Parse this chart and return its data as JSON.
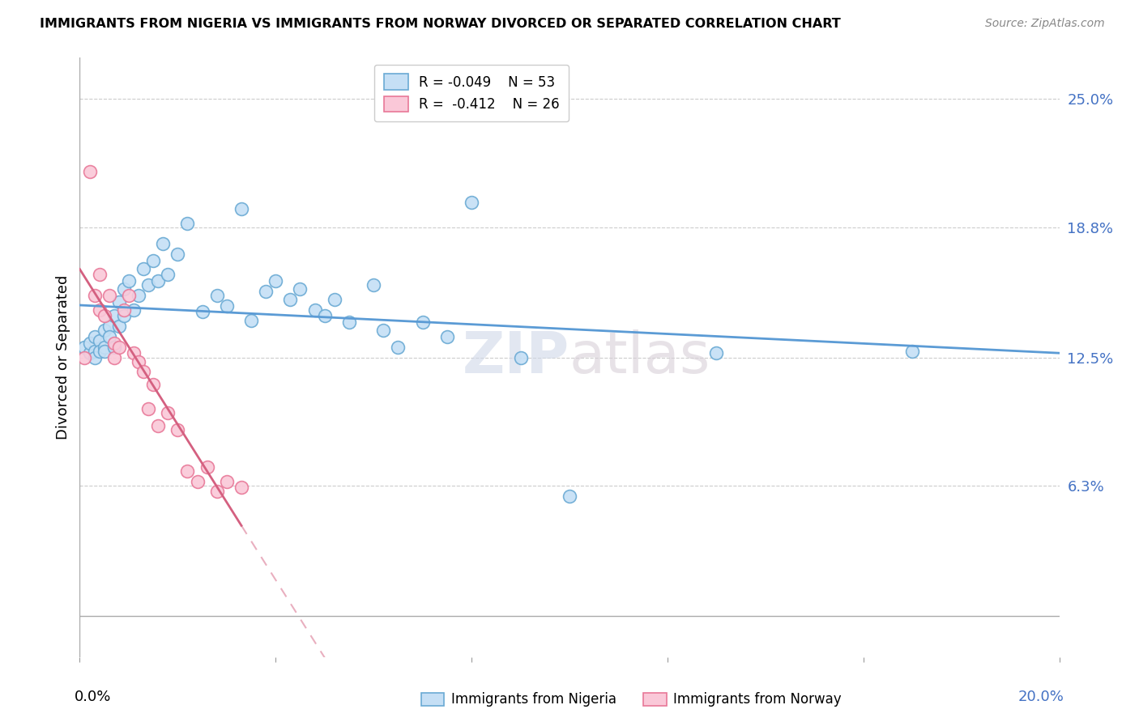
{
  "title": "IMMIGRANTS FROM NIGERIA VS IMMIGRANTS FROM NORWAY DIVORCED OR SEPARATED CORRELATION CHART",
  "source": "Source: ZipAtlas.com",
  "ylabel": "Divorced or Separated",
  "ytick_labels": [
    "6.3%",
    "12.5%",
    "18.8%",
    "25.0%"
  ],
  "ytick_values": [
    0.063,
    0.125,
    0.188,
    0.25
  ],
  "xlim": [
    0.0,
    0.2
  ],
  "ylim": [
    -0.02,
    0.27
  ],
  "watermark": "ZIPatlas",
  "nigeria_face_color": "#c5dff5",
  "nigeria_edge_color": "#6aaad4",
  "norway_face_color": "#fac8d8",
  "norway_edge_color": "#e87898",
  "nigeria_line_color": "#5b9bd5",
  "norway_line_color": "#d46080",
  "nigeria_scatter_x": [
    0.001,
    0.002,
    0.002,
    0.003,
    0.003,
    0.003,
    0.004,
    0.004,
    0.005,
    0.005,
    0.005,
    0.006,
    0.006,
    0.007,
    0.007,
    0.008,
    0.008,
    0.009,
    0.009,
    0.01,
    0.011,
    0.012,
    0.013,
    0.014,
    0.015,
    0.016,
    0.017,
    0.018,
    0.02,
    0.022,
    0.025,
    0.028,
    0.03,
    0.033,
    0.035,
    0.038,
    0.04,
    0.043,
    0.045,
    0.048,
    0.05,
    0.052,
    0.055,
    0.06,
    0.062,
    0.065,
    0.07,
    0.075,
    0.08,
    0.09,
    0.1,
    0.13,
    0.17
  ],
  "nigeria_scatter_y": [
    0.13,
    0.127,
    0.132,
    0.128,
    0.135,
    0.125,
    0.133,
    0.128,
    0.138,
    0.13,
    0.128,
    0.14,
    0.135,
    0.145,
    0.13,
    0.152,
    0.14,
    0.158,
    0.145,
    0.162,
    0.148,
    0.155,
    0.168,
    0.16,
    0.172,
    0.162,
    0.18,
    0.165,
    0.175,
    0.19,
    0.147,
    0.155,
    0.15,
    0.197,
    0.143,
    0.157,
    0.162,
    0.153,
    0.158,
    0.148,
    0.145,
    0.153,
    0.142,
    0.16,
    0.138,
    0.13,
    0.142,
    0.135,
    0.2,
    0.125,
    0.058,
    0.127,
    0.128
  ],
  "norway_scatter_x": [
    0.001,
    0.002,
    0.003,
    0.004,
    0.004,
    0.005,
    0.006,
    0.007,
    0.007,
    0.008,
    0.009,
    0.01,
    0.011,
    0.012,
    0.013,
    0.014,
    0.015,
    0.016,
    0.018,
    0.02,
    0.022,
    0.024,
    0.026,
    0.028,
    0.03,
    0.033
  ],
  "norway_scatter_y": [
    0.125,
    0.215,
    0.155,
    0.165,
    0.148,
    0.145,
    0.155,
    0.132,
    0.125,
    0.13,
    0.148,
    0.155,
    0.127,
    0.123,
    0.118,
    0.1,
    0.112,
    0.092,
    0.098,
    0.09,
    0.07,
    0.065,
    0.072,
    0.06,
    0.065,
    0.062
  ],
  "grid_color": "#cccccc",
  "spine_color": "#aaaaaa",
  "ytick_color": "#4472c4",
  "legend_r_color": "#c00000",
  "legend_n_color": "#4472c4"
}
